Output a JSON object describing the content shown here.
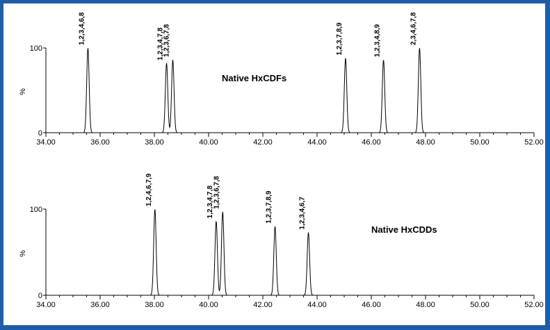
{
  "chart_data": [
    {
      "type": "line",
      "title": "Native HxCDFs",
      "ylabel": "%",
      "xlim": [
        34.0,
        52.0
      ],
      "ylim": [
        0,
        100
      ],
      "x_ticks": [
        "34.00",
        "36.00",
        "38.00",
        "40.00",
        "42.00",
        "44.00",
        "46.00",
        "48.00",
        "50.00",
        "52.00"
      ],
      "y_ticks": [
        "0",
        "100"
      ],
      "grid": false,
      "peaks": [
        {
          "label": "1,2,3,4,6,8",
          "x": 35.55,
          "y": 100
        },
        {
          "label": "1,2,3,4,7,8",
          "x": 38.45,
          "y": 82
        },
        {
          "label": "1,2,3,6,7,8",
          "x": 38.68,
          "y": 86
        },
        {
          "label": "1,2,3,7,8,9",
          "x": 45.05,
          "y": 88
        },
        {
          "label": "1,2,3,4,8,9",
          "x": 46.45,
          "y": 86
        },
        {
          "label": "2,3,4,6,7,8",
          "x": 47.78,
          "y": 100
        }
      ]
    },
    {
      "type": "line",
      "title": "Native HxCDDs",
      "ylabel": "%",
      "xlim": [
        34.0,
        52.0
      ],
      "ylim": [
        0,
        100
      ],
      "x_ticks": [
        "34.00",
        "36.00",
        "38.00",
        "40.00",
        "42.00",
        "44.00",
        "46.00",
        "48.00",
        "50.00",
        "52.00"
      ],
      "y_ticks": [
        "0",
        "100"
      ],
      "grid": false,
      "peaks": [
        {
          "label": "1,2,4,6,7,9",
          "x": 38.02,
          "y": 100
        },
        {
          "label": "1,2,3,4,7,8",
          "x": 40.28,
          "y": 86
        },
        {
          "label": "1,2,3,6,7,8",
          "x": 40.52,
          "y": 97
        },
        {
          "label": "1,2,3,7,8,9",
          "x": 42.45,
          "y": 80
        },
        {
          "label": "1,2,3,4,6,7",
          "x": 43.68,
          "y": 73
        }
      ]
    }
  ]
}
